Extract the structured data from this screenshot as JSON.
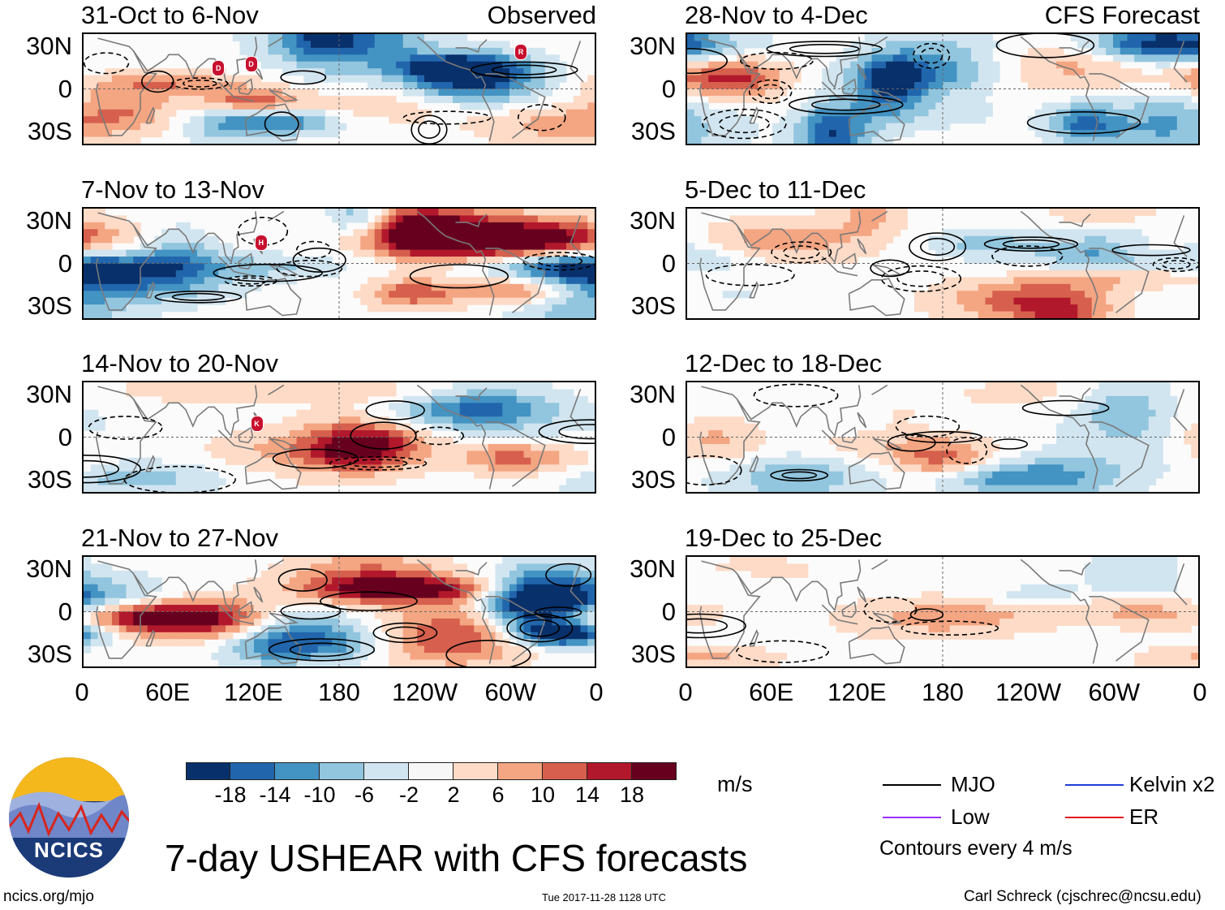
{
  "title": "7-day USHEAR with CFS forecasts",
  "colors": {
    "scale": [
      "#08306b",
      "#2166ac",
      "#4393c3",
      "#92c5de",
      "#d1e5f0",
      "#f7f7f7",
      "#fddbc7",
      "#f4a582",
      "#d6604d",
      "#b2182b",
      "#67001f"
    ],
    "land_outline": "#7a7a7a",
    "mjo_contour": "#000000",
    "low_line": "#9b30ff",
    "kelvin_line": "#1f3fd6",
    "er_line": "#e31a1c",
    "tc_marker": "#c8102e"
  },
  "chart_data": {
    "type": "heatmap",
    "variable": "USHEAR",
    "units": "m/s",
    "lat_ticks": [
      "30N",
      "0",
      "30S"
    ],
    "lat_range": [
      -40,
      40
    ],
    "lon_ticks": [
      "0",
      "60E",
      "120E",
      "180",
      "120W",
      "60W",
      "0"
    ],
    "lon_range": [
      0,
      360
    ],
    "colorbar_ticks": [
      "-18",
      "-14",
      "-10",
      "-6",
      "-2",
      "2",
      "6",
      "10",
      "14",
      "18"
    ],
    "contour_interval": "Contours every 4 m/s",
    "panels": [
      {
        "period": "31-Oct to 6-Nov",
        "source": "Observed",
        "tc_labels": [
          "D",
          "R"
        ]
      },
      {
        "period": "7-Nov to 13-Nov",
        "source": "",
        "tc_labels": [
          "H"
        ]
      },
      {
        "period": "14-Nov to 20-Nov",
        "source": "",
        "tc_labels": [
          "K"
        ]
      },
      {
        "period": "21-Nov to 27-Nov",
        "source": "",
        "tc_labels": []
      },
      {
        "period": "28-Nov to 4-Dec",
        "source": "CFS Forecast",
        "tc_labels": []
      },
      {
        "period": "5-Dec to 11-Dec",
        "source": "",
        "tc_labels": []
      },
      {
        "period": "12-Dec to 18-Dec",
        "source": "",
        "tc_labels": []
      },
      {
        "period": "19-Dec to 25-Dec",
        "source": "",
        "tc_labels": []
      }
    ]
  },
  "legend": {
    "units": "m/s",
    "items": [
      "MJO",
      "Low",
      "Kelvin x2",
      "ER"
    ],
    "contours_note": "Contours every 4 m/s"
  },
  "logo": {
    "text": "NCICS"
  },
  "footer": {
    "site": "ncics.org/mjo",
    "timestamp": "Tue 2017-11-28 1128 UTC",
    "author": "Carl Schreck (cjschrec@ncsu.edu)"
  }
}
